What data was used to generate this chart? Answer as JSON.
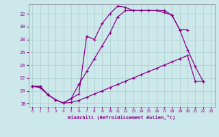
{
  "xlabel": "Windchill (Refroidissement éolien,°C)",
  "background_color": "#cce8ea",
  "line_color": "#880088",
  "grid_color": "#aacccc",
  "xlim": [
    -0.5,
    23.5
  ],
  "ylim": [
    17.5,
    33.5
  ],
  "xticks": [
    0,
    1,
    2,
    3,
    4,
    5,
    6,
    7,
    8,
    9,
    10,
    11,
    12,
    13,
    14,
    15,
    16,
    17,
    18,
    19,
    20,
    21,
    22,
    23
  ],
  "yticks": [
    18,
    20,
    22,
    24,
    26,
    28,
    30,
    32
  ],
  "line1_x": [
    0,
    1,
    2,
    3,
    4,
    5,
    6,
    7,
    8,
    9,
    10,
    11,
    12,
    13,
    14,
    15,
    16,
    17,
    18,
    19,
    20
  ],
  "line1_y": [
    20.7,
    20.7,
    19.4,
    18.6,
    18.1,
    18.8,
    19.5,
    28.5,
    28.0,
    30.5,
    32.0,
    33.2,
    33.0,
    32.5,
    32.5,
    32.5,
    32.5,
    32.2,
    31.8,
    29.5,
    29.5
  ],
  "line2_x": [
    0,
    1,
    2,
    3,
    4,
    5,
    6,
    7,
    8,
    9,
    10,
    11,
    12,
    13,
    14,
    15,
    16,
    17,
    18,
    19,
    20,
    21,
    22
  ],
  "line2_y": [
    20.7,
    20.7,
    19.4,
    18.6,
    18.1,
    18.8,
    21.0,
    23.0,
    25.0,
    27.0,
    29.0,
    31.5,
    32.5,
    32.5,
    32.5,
    32.5,
    32.5,
    32.5,
    31.8,
    29.5,
    26.4,
    23.8,
    21.5
  ],
  "line3_x": [
    0,
    1,
    2,
    3,
    4,
    5,
    6,
    7,
    8,
    9,
    10,
    11,
    12,
    13,
    14,
    15,
    16,
    17,
    18,
    19,
    20,
    21,
    22
  ],
  "line3_y": [
    20.7,
    20.5,
    19.4,
    18.6,
    18.1,
    18.2,
    18.5,
    19.0,
    19.5,
    20.0,
    20.5,
    21.0,
    21.5,
    22.0,
    22.5,
    23.0,
    23.5,
    24.0,
    24.5,
    25.0,
    25.5,
    21.5,
    21.5
  ]
}
